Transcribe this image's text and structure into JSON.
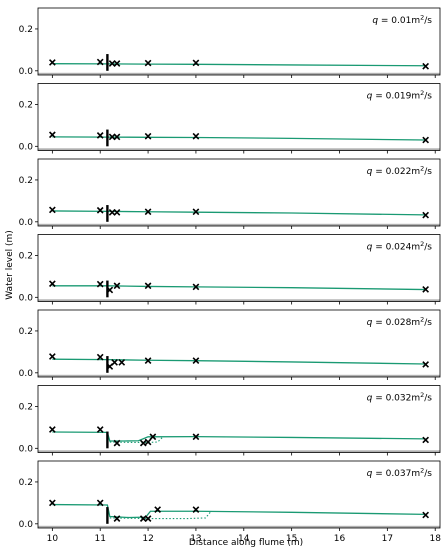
{
  "chart_data": {
    "type": "line",
    "xlabel": "Distance along flume (m)",
    "ylabel": "Water level (m)",
    "xlim": [
      9.7,
      18.1
    ],
    "ylim": [
      -0.02,
      0.3
    ],
    "x_ticks": [
      "10",
      "11",
      "12",
      "13",
      "14",
      "15",
      "16",
      "17",
      "18"
    ],
    "y_ticks": [
      "0.0",
      "0.2"
    ],
    "colors": {
      "model_line": "#1a9a73",
      "bed": "#b0b0b0",
      "markers": "#000000",
      "weir": "#000000"
    },
    "weir_x": 11.15,
    "panels": [
      {
        "q_label": "q = 0.01m²/s",
        "q_var": "q",
        "q_value": "0.01",
        "q_unit": "m",
        "q_exp": "2",
        "q_per": "/s",
        "observed": [
          [
            10.0,
            0.04
          ],
          [
            11.0,
            0.042
          ],
          [
            11.25,
            0.035
          ],
          [
            11.35,
            0.035
          ],
          [
            12.0,
            0.037
          ],
          [
            13.0,
            0.038
          ],
          [
            17.8,
            0.022
          ]
        ],
        "model": [
          [
            10.0,
            0.034
          ],
          [
            11.15,
            0.033
          ],
          [
            12.0,
            0.032
          ],
          [
            13.0,
            0.031
          ],
          [
            15.0,
            0.028
          ],
          [
            17.8,
            0.024
          ]
        ],
        "model_dotted": []
      },
      {
        "q_label": "q = 0.019m²/s",
        "q_var": "q",
        "q_value": "0.019",
        "q_unit": "m",
        "q_exp": "2",
        "q_per": "/s",
        "observed": [
          [
            10.0,
            0.055
          ],
          [
            11.0,
            0.052
          ],
          [
            11.25,
            0.045
          ],
          [
            11.35,
            0.045
          ],
          [
            12.0,
            0.048
          ],
          [
            13.0,
            0.048
          ],
          [
            17.8,
            0.03
          ]
        ],
        "model": [
          [
            10.0,
            0.045
          ],
          [
            11.15,
            0.044
          ],
          [
            12.0,
            0.043
          ],
          [
            13.0,
            0.042
          ],
          [
            15.0,
            0.038
          ],
          [
            17.8,
            0.03
          ]
        ],
        "model_dotted": []
      },
      {
        "q_label": "q = 0.022m²/s",
        "q_var": "q",
        "q_value": "0.022",
        "q_unit": "m",
        "q_exp": "2",
        "q_per": "/s",
        "observed": [
          [
            10.0,
            0.057
          ],
          [
            11.0,
            0.055
          ],
          [
            11.25,
            0.045
          ],
          [
            11.35,
            0.045
          ],
          [
            12.0,
            0.048
          ],
          [
            13.0,
            0.048
          ],
          [
            17.8,
            0.032
          ]
        ],
        "model": [
          [
            10.0,
            0.052
          ],
          [
            11.15,
            0.05
          ],
          [
            12.0,
            0.048
          ],
          [
            13.0,
            0.046
          ],
          [
            15.0,
            0.042
          ],
          [
            17.8,
            0.033
          ]
        ],
        "model_dotted": []
      },
      {
        "q_label": "q = 0.024m²/s",
        "q_var": "q",
        "q_value": "0.024",
        "q_unit": "m",
        "q_exp": "2",
        "q_per": "/s",
        "observed": [
          [
            10.0,
            0.065
          ],
          [
            11.0,
            0.063
          ],
          [
            11.2,
            0.035
          ],
          [
            11.35,
            0.055
          ],
          [
            12.0,
            0.055
          ],
          [
            13.0,
            0.05
          ],
          [
            17.8,
            0.038
          ]
        ],
        "model": [
          [
            10.0,
            0.055
          ],
          [
            11.15,
            0.055
          ],
          [
            12.0,
            0.052
          ],
          [
            13.0,
            0.05
          ],
          [
            15.0,
            0.046
          ],
          [
            17.8,
            0.037
          ]
        ],
        "model_dotted": []
      },
      {
        "q_label": "q = 0.028m²/s",
        "q_var": "q",
        "q_value": "0.028",
        "q_unit": "m",
        "q_exp": "2",
        "q_per": "/s",
        "observed": [
          [
            10.0,
            0.078
          ],
          [
            11.0,
            0.075
          ],
          [
            11.2,
            0.03
          ],
          [
            11.3,
            0.05
          ],
          [
            11.45,
            0.05
          ],
          [
            12.0,
            0.058
          ],
          [
            13.0,
            0.058
          ],
          [
            17.8,
            0.04
          ]
        ],
        "model": [
          [
            10.0,
            0.065
          ],
          [
            11.15,
            0.063
          ],
          [
            12.0,
            0.06
          ],
          [
            13.0,
            0.058
          ],
          [
            15.0,
            0.052
          ],
          [
            17.8,
            0.042
          ]
        ],
        "model_dotted": []
      },
      {
        "q_label": "q = 0.032m²/s",
        "q_var": "q",
        "q_value": "0.032",
        "q_unit": "m",
        "q_exp": "2",
        "q_per": "/s",
        "observed": [
          [
            10.0,
            0.09
          ],
          [
            11.0,
            0.09
          ],
          [
            11.35,
            0.025
          ],
          [
            11.9,
            0.025
          ],
          [
            12.0,
            0.03
          ],
          [
            12.1,
            0.055
          ],
          [
            13.0,
            0.055
          ],
          [
            17.8,
            0.04
          ]
        ],
        "model": [
          [
            10.0,
            0.078
          ],
          [
            11.15,
            0.076
          ],
          [
            11.2,
            0.035
          ],
          [
            11.5,
            0.035
          ],
          [
            11.8,
            0.036
          ],
          [
            12.0,
            0.055
          ],
          [
            13.0,
            0.056
          ],
          [
            15.0,
            0.052
          ],
          [
            17.8,
            0.045
          ]
        ],
        "model_dotted": [
          [
            11.2,
            0.03
          ],
          [
            11.6,
            0.028
          ],
          [
            12.0,
            0.028
          ],
          [
            12.2,
            0.03
          ],
          [
            12.3,
            0.052
          ]
        ]
      },
      {
        "q_label": "q = 0.037m²/s",
        "q_var": "q",
        "q_value": "0.037",
        "q_unit": "m",
        "q_exp": "2",
        "q_per": "/s",
        "observed": [
          [
            10.0,
            0.1
          ],
          [
            11.0,
            0.1
          ],
          [
            11.35,
            0.025
          ],
          [
            11.9,
            0.025
          ],
          [
            12.0,
            0.025
          ],
          [
            12.2,
            0.068
          ],
          [
            13.0,
            0.068
          ],
          [
            17.8,
            0.042
          ]
        ],
        "model": [
          [
            10.0,
            0.092
          ],
          [
            11.15,
            0.09
          ],
          [
            11.2,
            0.035
          ],
          [
            11.6,
            0.03
          ],
          [
            11.95,
            0.032
          ],
          [
            12.05,
            0.06
          ],
          [
            13.0,
            0.06
          ],
          [
            15.0,
            0.055
          ],
          [
            17.8,
            0.045
          ]
        ],
        "model_dotted": [
          [
            11.2,
            0.028
          ],
          [
            12.0,
            0.025
          ],
          [
            12.8,
            0.025
          ],
          [
            13.2,
            0.028
          ],
          [
            13.3,
            0.055
          ]
        ]
      }
    ]
  }
}
